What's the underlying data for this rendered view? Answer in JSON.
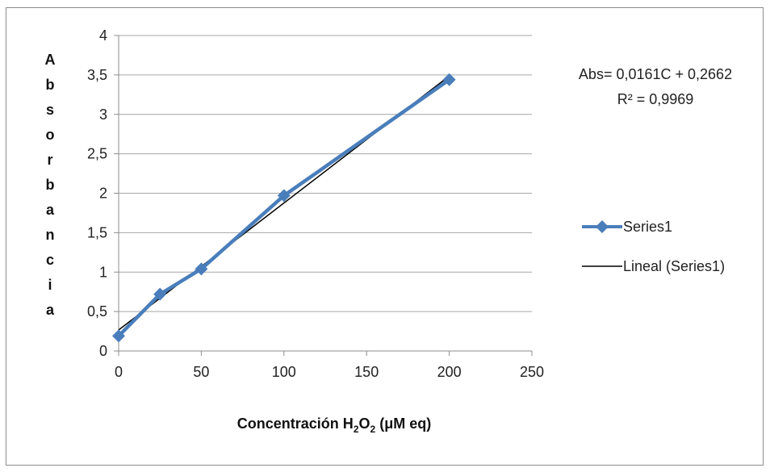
{
  "chart_data": {
    "type": "line",
    "title": "",
    "xlabel_main": "Concentración H",
    "xlabel_sub1": "2",
    "xlabel_mid": "O",
    "xlabel_sub2": "2",
    "xlabel_tail": " (μM eq)",
    "ylabel_letters": [
      "A",
      "b",
      "s",
      "o",
      "r",
      "b",
      "a",
      "n",
      "c",
      "i",
      "a"
    ],
    "xlim": [
      0,
      250
    ],
    "ylim": [
      0,
      4
    ],
    "xticks": [
      "0",
      "50",
      "100",
      "150",
      "200",
      "250"
    ],
    "yticks": [
      "0",
      "0,5",
      "1",
      "1,5",
      "2",
      "2,5",
      "3",
      "3,5",
      "4"
    ],
    "grid": "horizontal",
    "series": [
      {
        "name": "Series1",
        "color": "#4a7ebb",
        "x": [
          0,
          25,
          50,
          100,
          200
        ],
        "y": [
          0.19,
          0.72,
          1.04,
          1.97,
          3.44
        ]
      }
    ],
    "trendline": {
      "name": "Lineal (Series1)",
      "color": "#000000",
      "slope": 0.0161,
      "intercept": 0.2662,
      "x_range": [
        0,
        200
      ]
    },
    "equation": "Abs= 0,0161C + 0,2662",
    "r_squared": "R² = 0,9969",
    "legend_position": "right"
  }
}
